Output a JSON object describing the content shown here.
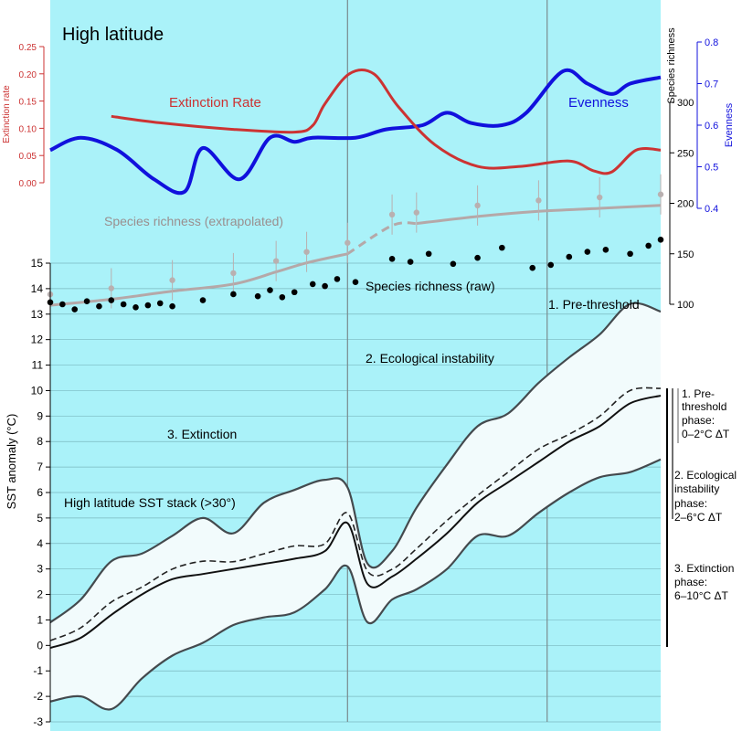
{
  "title": "High latitude",
  "colors": {
    "background": "#aaf2f9",
    "extinction": "#cc3333",
    "evenness": "#1111dd",
    "richness_extrapolated": "#b5a8a8",
    "raw_points": "#000000",
    "sst_envelope": "#444a4e",
    "sst_fill": "#f2fbfc",
    "grid": "#7bb8c0"
  },
  "labels": {
    "extinction_rate_curve": "Extinction Rate",
    "evenness_curve": "Evenness",
    "richness_extrapolated": "Species richness (extrapolated)",
    "richness_raw": "Species richness (raw)",
    "sst_stack": "High latitude SST stack (>30°)",
    "phase_pre": "1. Pre-threshold",
    "phase_instability": "2. Ecological instability",
    "phase_extinction": "3. Extinction"
  },
  "phase_bars": [
    {
      "line1": "1. Pre-",
      "line2": "threshold",
      "line3": "phase:",
      "line4": "0–2°C ΔT"
    },
    {
      "line1": "2. Ecological",
      "line2": "instability",
      "line3": "phase:",
      "line4": "2–6°C ΔT"
    },
    {
      "line1": "3. Extinction",
      "line2": "phase:",
      "line3": "6–10°C ΔT",
      "line4": ""
    }
  ],
  "chart_data": {
    "type": "line",
    "title": "High latitude",
    "axes": {
      "extinction_rate": {
        "label": "Extinction rate",
        "side": "left",
        "range": [
          0,
          0.25
        ],
        "ticks": [
          "0.00",
          "0.05",
          "0.10",
          "0.15",
          "0.20",
          "0.25"
        ]
      },
      "evenness": {
        "label": "Evenness",
        "side": "right",
        "range": [
          0.4,
          0.8
        ],
        "ticks": [
          "0.4",
          "0.5",
          "0.6",
          "0.7",
          "0.8"
        ]
      },
      "species_richness": {
        "label": "Species richness",
        "side": "right",
        "range": [
          100,
          300
        ],
        "ticks": [
          "100",
          "150",
          "200",
          "250",
          "300"
        ]
      },
      "sst_anomaly": {
        "label": "SST anomaly (°C)",
        "side": "left",
        "range": [
          -3,
          15
        ],
        "ticks": [
          "-3",
          "-2",
          "-1",
          "0",
          "1",
          "2",
          "3",
          "4",
          "5",
          "6",
          "7",
          "8",
          "9",
          "10",
          "11",
          "12",
          "13",
          "14",
          "15"
        ]
      }
    },
    "phase_boundaries_fraction": [
      0.487,
      0.814
    ],
    "series": [
      {
        "name": "Extinction Rate",
        "axis": "extinction_rate",
        "x": [
          0.1,
          0.18,
          0.3,
          0.4,
          0.43,
          0.45,
          0.49,
          0.53,
          0.57,
          0.63,
          0.7,
          0.77,
          0.85,
          0.89,
          0.92,
          0.96,
          1.0
        ],
        "y": [
          0.122,
          0.11,
          0.098,
          0.093,
          0.105,
          0.145,
          0.2,
          0.2,
          0.14,
          0.07,
          0.03,
          0.03,
          0.04,
          0.022,
          0.02,
          0.06,
          0.06
        ]
      },
      {
        "name": "Evenness",
        "axis": "evenness",
        "x": [
          0.0,
          0.05,
          0.11,
          0.17,
          0.22,
          0.25,
          0.31,
          0.36,
          0.4,
          0.43,
          0.5,
          0.55,
          0.61,
          0.65,
          0.69,
          0.74,
          0.78,
          0.84,
          0.88,
          0.92,
          0.95,
          1.0
        ],
        "y": [
          0.54,
          0.57,
          0.54,
          0.47,
          0.44,
          0.545,
          0.47,
          0.57,
          0.56,
          0.57,
          0.57,
          0.59,
          0.6,
          0.63,
          0.605,
          0.6,
          0.63,
          0.73,
          0.7,
          0.675,
          0.7,
          0.715
        ]
      },
      {
        "name": "Species richness (extrapolated)",
        "axis": "species_richness",
        "x": [
          0.0,
          0.1,
          0.2,
          0.3,
          0.37,
          0.42,
          0.487,
          0.56,
          0.6,
          0.7,
          0.8,
          0.9,
          1.0
        ],
        "y": [
          99,
          105,
          113,
          120,
          132,
          141,
          150,
          178,
          180,
          187,
          192,
          195,
          198
        ]
      },
      {
        "name": "Species richness (raw)",
        "axis": "species_richness",
        "x": [
          0.0,
          0.02,
          0.04,
          0.06,
          0.08,
          0.1,
          0.12,
          0.14,
          0.16,
          0.18,
          0.2,
          0.25,
          0.3,
          0.34,
          0.36,
          0.38,
          0.4,
          0.43,
          0.45,
          0.47,
          0.5,
          0.56,
          0.59,
          0.62,
          0.66,
          0.7,
          0.74,
          0.79,
          0.82,
          0.85,
          0.88,
          0.91,
          0.95,
          0.98,
          1.0
        ],
        "y": [
          102,
          100,
          95,
          103,
          98,
          104,
          100,
          97,
          99,
          101,
          98,
          104,
          110,
          108,
          114,
          107,
          112,
          120,
          118,
          125,
          122,
          145,
          142,
          150,
          140,
          146,
          156,
          136,
          139,
          147,
          152,
          154,
          150,
          158,
          164
        ]
      },
      {
        "name": "High latitude SST stack (>30°)",
        "axis": "sst_anomaly",
        "x": [
          0.0,
          0.05,
          0.1,
          0.15,
          0.2,
          0.25,
          0.3,
          0.35,
          0.4,
          0.45,
          0.487,
          0.52,
          0.56,
          0.6,
          0.65,
          0.7,
          0.75,
          0.8,
          0.85,
          0.9,
          0.95,
          1.0
        ],
        "y": [
          -0.1,
          0.3,
          1.2,
          2.0,
          2.6,
          2.8,
          3.0,
          3.2,
          3.4,
          3.7,
          4.8,
          2.4,
          2.7,
          3.4,
          4.4,
          5.6,
          6.4,
          7.2,
          8.0,
          8.6,
          9.5,
          9.8
        ]
      },
      {
        "name": "SST upper envelope",
        "axis": "sst_anomaly",
        "x": [
          0.0,
          0.05,
          0.1,
          0.15,
          0.2,
          0.25,
          0.3,
          0.35,
          0.4,
          0.45,
          0.487,
          0.52,
          0.56,
          0.6,
          0.65,
          0.7,
          0.75,
          0.8,
          0.85,
          0.9,
          0.95,
          1.0
        ],
        "y": [
          0.9,
          1.8,
          3.3,
          3.6,
          4.3,
          5.0,
          4.4,
          5.6,
          6.1,
          6.5,
          6.2,
          3.2,
          3.7,
          5.4,
          7.1,
          8.6,
          9.1,
          10.3,
          11.3,
          12.2,
          13.4,
          13.1
        ]
      },
      {
        "name": "SST lower envelope",
        "axis": "sst_anomaly",
        "x": [
          0.0,
          0.05,
          0.1,
          0.15,
          0.2,
          0.25,
          0.3,
          0.35,
          0.4,
          0.45,
          0.487,
          0.52,
          0.56,
          0.6,
          0.65,
          0.7,
          0.75,
          0.8,
          0.85,
          0.9,
          0.95,
          1.0
        ],
        "y": [
          -2.2,
          -2.0,
          -2.5,
          -1.3,
          -0.4,
          0.1,
          0.8,
          1.1,
          1.3,
          2.2,
          3.1,
          0.9,
          1.8,
          2.2,
          3.0,
          4.3,
          4.3,
          5.2,
          6.0,
          6.6,
          6.8,
          7.3
        ]
      }
    ]
  }
}
